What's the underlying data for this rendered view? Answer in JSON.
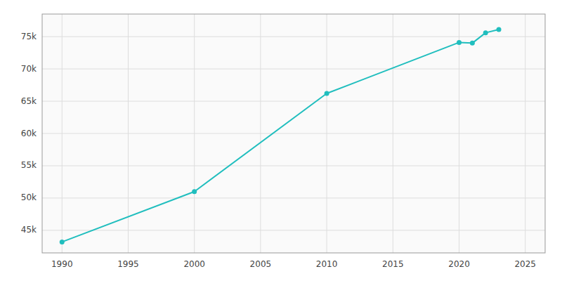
{
  "chart_data": {
    "type": "line",
    "x": [
      1990,
      2000,
      2010,
      2020,
      2021,
      2022,
      2023
    ],
    "values": [
      43200,
      51000,
      66200,
      74100,
      74000,
      75600,
      76100
    ],
    "color": "#20BEBE",
    "marker": "circle",
    "xlim": [
      1988.5,
      2026.5
    ],
    "ylim": [
      41500,
      78500
    ],
    "xticks": [
      1990,
      1995,
      2000,
      2005,
      2010,
      2015,
      2020,
      2025
    ],
    "yticks": [
      {
        "value": 45000,
        "label": "45k"
      },
      {
        "value": 50000,
        "label": "50k"
      },
      {
        "value": 55000,
        "label": "55k"
      },
      {
        "value": 60000,
        "label": "60k"
      },
      {
        "value": 65000,
        "label": "65k"
      },
      {
        "value": 70000,
        "label": "70k"
      },
      {
        "value": 75000,
        "label": "75k"
      }
    ],
    "grid": true
  }
}
